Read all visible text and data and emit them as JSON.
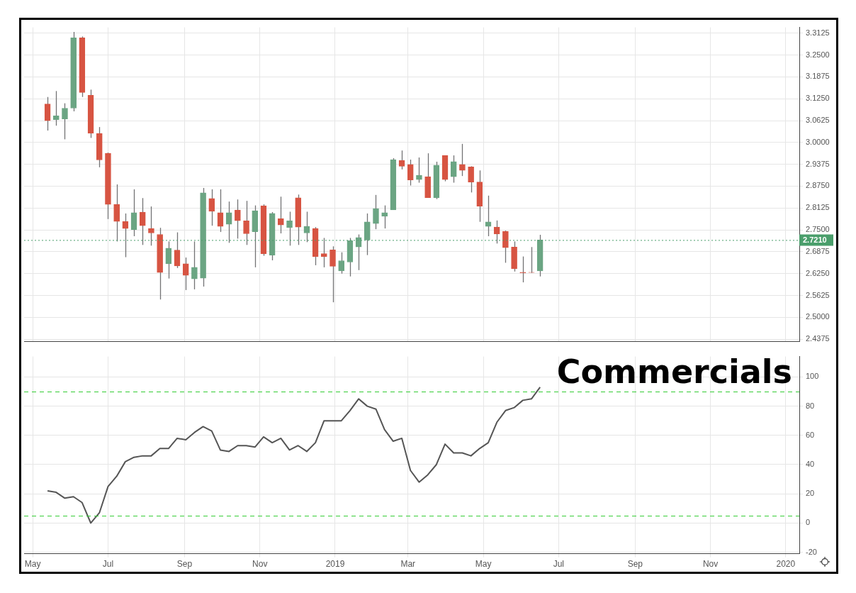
{
  "chart_data": [
    {
      "type": "candlestick",
      "x": [
        "2018-05-13",
        "2018-05-20",
        "2018-05-27",
        "2018-06-03",
        "2018-06-10",
        "2018-06-17",
        "2018-06-24",
        "2018-07-01",
        "2018-07-08",
        "2018-07-15",
        "2018-07-22",
        "2018-07-29",
        "2018-08-05",
        "2018-08-12",
        "2018-08-19",
        "2018-08-26",
        "2018-09-02",
        "2018-09-09",
        "2018-09-16",
        "2018-09-23",
        "2018-09-30",
        "2018-10-07",
        "2018-10-14",
        "2018-10-21",
        "2018-10-28",
        "2018-11-04",
        "2018-11-11",
        "2018-11-18",
        "2018-11-25",
        "2018-12-02",
        "2018-12-09",
        "2018-12-16",
        "2018-12-23",
        "2018-12-30",
        "2019-01-06",
        "2019-01-13",
        "2019-01-20",
        "2019-01-27",
        "2019-02-03",
        "2019-02-10",
        "2019-02-17",
        "2019-02-24",
        "2019-03-03",
        "2019-03-10",
        "2019-03-17",
        "2019-03-24",
        "2019-03-31",
        "2019-04-07",
        "2019-04-14",
        "2019-04-21",
        "2019-04-28",
        "2019-05-05",
        "2019-05-12",
        "2019-05-19",
        "2019-05-26",
        "2019-06-02",
        "2019-06-09",
        "2019-06-16"
      ],
      "ohlc": [
        [
          3.11,
          3.13,
          3.034,
          3.062
        ],
        [
          3.065,
          3.147,
          3.048,
          3.076
        ],
        [
          3.067,
          3.112,
          3.009,
          3.098
        ],
        [
          3.098,
          3.316,
          3.089,
          3.299
        ],
        [
          3.299,
          3.303,
          3.13,
          3.143
        ],
        [
          3.135,
          3.151,
          3.013,
          3.026
        ],
        [
          3.026,
          3.044,
          2.929,
          2.95
        ],
        [
          2.969,
          2.971,
          2.781,
          2.823
        ],
        [
          2.823,
          2.88,
          2.717,
          2.774
        ],
        [
          2.774,
          2.797,
          2.672,
          2.754
        ],
        [
          2.751,
          2.866,
          2.732,
          2.799
        ],
        [
          2.801,
          2.841,
          2.707,
          2.762
        ],
        [
          2.754,
          2.817,
          2.705,
          2.741
        ],
        [
          2.737,
          2.756,
          2.551,
          2.628
        ],
        [
          2.653,
          2.717,
          2.611,
          2.698
        ],
        [
          2.692,
          2.743,
          2.641,
          2.647
        ],
        [
          2.653,
          2.671,
          2.578,
          2.62
        ],
        [
          2.61,
          2.717,
          2.58,
          2.643
        ],
        [
          2.612,
          2.87,
          2.588,
          2.856
        ],
        [
          2.84,
          2.866,
          2.762,
          2.803
        ],
        [
          2.799,
          2.866,
          2.744,
          2.76
        ],
        [
          2.766,
          2.831,
          2.713,
          2.799
        ],
        [
          2.807,
          2.837,
          2.725,
          2.776
        ],
        [
          2.776,
          2.833,
          2.707,
          2.739
        ],
        [
          2.745,
          2.82,
          2.643,
          2.805
        ],
        [
          2.819,
          2.823,
          2.676,
          2.682
        ],
        [
          2.678,
          2.801,
          2.663,
          2.797
        ],
        [
          2.782,
          2.845,
          2.74,
          2.764
        ],
        [
          2.757,
          2.802,
          2.705,
          2.776
        ],
        [
          2.842,
          2.851,
          2.707,
          2.758
        ],
        [
          2.741,
          2.802,
          2.715,
          2.76
        ],
        [
          2.754,
          2.758,
          2.649,
          2.674
        ],
        [
          2.682,
          2.727,
          2.643,
          2.674
        ],
        [
          2.693,
          2.703,
          2.543,
          2.646
        ],
        [
          2.633,
          2.686,
          2.625,
          2.662
        ],
        [
          2.658,
          2.727,
          2.617,
          2.719
        ],
        [
          2.701,
          2.737,
          2.635,
          2.728
        ],
        [
          2.721,
          2.797,
          2.678,
          2.773
        ],
        [
          2.768,
          2.85,
          2.752,
          2.811
        ],
        [
          2.789,
          2.82,
          2.754,
          2.799
        ],
        [
          2.807,
          2.955,
          2.807,
          2.951
        ],
        [
          2.949,
          2.977,
          2.923,
          2.932
        ],
        [
          2.937,
          2.951,
          2.877,
          2.893
        ],
        [
          2.894,
          2.957,
          2.885,
          2.906
        ],
        [
          2.902,
          2.969,
          2.842,
          2.842
        ],
        [
          2.842,
          2.945,
          2.838,
          2.935
        ],
        [
          2.963,
          2.963,
          2.889,
          2.894
        ],
        [
          2.902,
          2.963,
          2.885,
          2.945
        ],
        [
          2.937,
          2.996,
          2.904,
          2.92
        ],
        [
          2.93,
          2.932,
          2.857,
          2.887
        ],
        [
          2.887,
          2.92,
          2.773,
          2.818
        ],
        [
          2.76,
          2.848,
          2.732,
          2.773
        ],
        [
          2.758,
          2.777,
          2.711,
          2.738
        ],
        [
          2.746,
          2.748,
          2.656,
          2.699
        ],
        [
          2.701,
          2.717,
          2.631,
          2.639
        ],
        [
          2.629,
          2.674,
          2.6,
          2.627
        ],
        [
          2.629,
          2.701,
          2.627,
          2.628
        ],
        [
          2.633,
          2.736,
          2.617,
          2.721
        ]
      ],
      "colors": [
        "#d75442",
        "#6ba583",
        "#6ba583",
        "#6ba583",
        "#d75442",
        "#d75442",
        "#d75442",
        "#d75442",
        "#d75442",
        "#d75442",
        "#6ba583",
        "#d75442",
        "#d75442",
        "#d75442",
        "#6ba583",
        "#d75442",
        "#d75442",
        "#6ba583",
        "#6ba583",
        "#d75442",
        "#d75442",
        "#6ba583",
        "#d75442",
        "#d75442",
        "#6ba583",
        "#d75442",
        "#6ba583",
        "#d75442",
        "#6ba583",
        "#d75442",
        "#6ba583",
        "#d75442",
        "#d75442",
        "#d75442",
        "#6ba583",
        "#6ba583",
        "#6ba583",
        "#6ba583",
        "#6ba583",
        "#6ba583",
        "#6ba583",
        "#d75442",
        "#d75442",
        "#6ba583",
        "#d75442",
        "#6ba583",
        "#d75442",
        "#6ba583",
        "#d75442",
        "#d75442",
        "#d75442",
        "#6ba583",
        "#d75442",
        "#d75442",
        "#d75442",
        "#d75442",
        "#d75442",
        "#6ba583"
      ],
      "xlim": [
        "2018-04-24",
        "2020-01-12"
      ],
      "xticks": [
        {
          "value": "2018-05-01",
          "label": null
        },
        {
          "value": "2018-07-01",
          "label": null
        },
        {
          "value": "2018-09-01",
          "label": null
        },
        {
          "value": "2018-11-01",
          "label": null
        },
        {
          "value": "2019-01-01",
          "label": null
        },
        {
          "value": "2019-03-01",
          "label": null
        },
        {
          "value": "2019-05-01",
          "label": null
        },
        {
          "value": "2019-07-01",
          "label": null
        },
        {
          "value": "2019-09-01",
          "label": null
        },
        {
          "value": "2019-11-01",
          "label": null
        },
        {
          "value": "2020-01-01",
          "label": null
        }
      ],
      "ylim": [
        2.431,
        3.329
      ],
      "yticks": [
        {
          "value": 2.4375,
          "label": "2.4375"
        },
        {
          "value": 2.5,
          "label": "2.5000"
        },
        {
          "value": 2.5625,
          "label": "2.5625"
        },
        {
          "value": 2.625,
          "label": "2.6250"
        },
        {
          "value": 2.6875,
          "label": "2.6875"
        },
        {
          "value": 2.75,
          "label": "2.7500"
        },
        {
          "value": 2.8125,
          "label": "2.8125"
        },
        {
          "value": 2.875,
          "label": "2.8750"
        },
        {
          "value": 2.9375,
          "label": "2.9375"
        },
        {
          "value": 3.0,
          "label": "3.0000"
        },
        {
          "value": 3.0625,
          "label": "3.0625"
        },
        {
          "value": 3.125,
          "label": "3.1250"
        },
        {
          "value": 3.1875,
          "label": "3.1875"
        },
        {
          "value": 3.25,
          "label": "3.2500"
        },
        {
          "value": 3.3125,
          "label": "3.3125"
        }
      ],
      "ref_lines": [
        {
          "axis": "y",
          "value": 2.721,
          "label": "2.7210",
          "color": "#4a9e6b",
          "line_style": "dotted"
        }
      ],
      "tick_labels": "y",
      "grid": true,
      "legend": false
    },
    {
      "type": "line",
      "x": [
        "2018-05-13",
        "2018-05-20",
        "2018-05-27",
        "2018-06-03",
        "2018-06-10",
        "2018-06-17",
        "2018-06-24",
        "2018-07-01",
        "2018-07-08",
        "2018-07-15",
        "2018-07-22",
        "2018-07-29",
        "2018-08-05",
        "2018-08-12",
        "2018-08-19",
        "2018-08-26",
        "2018-09-02",
        "2018-09-09",
        "2018-09-16",
        "2018-09-23",
        "2018-09-30",
        "2018-10-07",
        "2018-10-14",
        "2018-10-21",
        "2018-10-28",
        "2018-11-04",
        "2018-11-11",
        "2018-11-18",
        "2018-11-25",
        "2018-12-02",
        "2018-12-09",
        "2018-12-16",
        "2018-12-23",
        "2018-12-30",
        "2019-01-06",
        "2019-01-13",
        "2019-01-20",
        "2019-01-27",
        "2019-02-03",
        "2019-02-10",
        "2019-02-17",
        "2019-02-24",
        "2019-03-03",
        "2019-03-10",
        "2019-03-17",
        "2019-03-24",
        "2019-03-31",
        "2019-04-07",
        "2019-04-14",
        "2019-04-21",
        "2019-04-28",
        "2019-05-05",
        "2019-05-12",
        "2019-05-19",
        "2019-05-26",
        "2019-06-02",
        "2019-06-09",
        "2019-06-16"
      ],
      "series": [
        {
          "color": "#555555",
          "values": [
            22,
            21,
            17,
            18,
            14,
            0,
            7,
            25,
            32,
            42,
            45,
            46,
            46,
            51,
            51,
            58,
            57,
            62,
            66,
            63,
            50,
            49,
            53,
            53,
            52,
            59,
            55,
            58,
            50,
            53,
            49,
            55,
            70,
            70,
            70,
            77,
            85,
            80,
            78,
            64,
            56,
            58,
            36,
            28,
            33,
            40,
            54,
            48,
            48,
            46,
            51,
            55,
            69,
            77,
            79,
            84,
            85,
            93
          ]
        }
      ],
      "xlim": [
        "2018-04-24",
        "2020-01-12"
      ],
      "xticks": [
        {
          "value": "2018-05-01",
          "label": "May"
        },
        {
          "value": "2018-07-01",
          "label": "Jul"
        },
        {
          "value": "2018-09-01",
          "label": "Sep"
        },
        {
          "value": "2018-11-01",
          "label": "Nov"
        },
        {
          "value": "2019-01-01",
          "label": "2019"
        },
        {
          "value": "2019-03-01",
          "label": "Mar"
        },
        {
          "value": "2019-05-01",
          "label": "May"
        },
        {
          "value": "2019-07-01",
          "label": "Jul"
        },
        {
          "value": "2019-09-01",
          "label": "Sep"
        },
        {
          "value": "2019-11-01",
          "label": "Nov"
        },
        {
          "value": "2020-01-01",
          "label": "2020"
        }
      ],
      "ylim": [
        -21,
        114
      ],
      "yticks": [
        -20,
        0,
        20,
        40,
        60,
        80,
        100
      ],
      "ref_lines": [
        {
          "axis": "y",
          "value": 90,
          "color": "#33cc33",
          "line_style": "dashed"
        },
        {
          "axis": "y",
          "value": 5,
          "color": "#33cc33",
          "line_style": "dashed"
        }
      ],
      "annotations": [
        "Commercials"
      ],
      "marker": "none",
      "line_style": "solid",
      "grid": true,
      "legend": false
    }
  ]
}
